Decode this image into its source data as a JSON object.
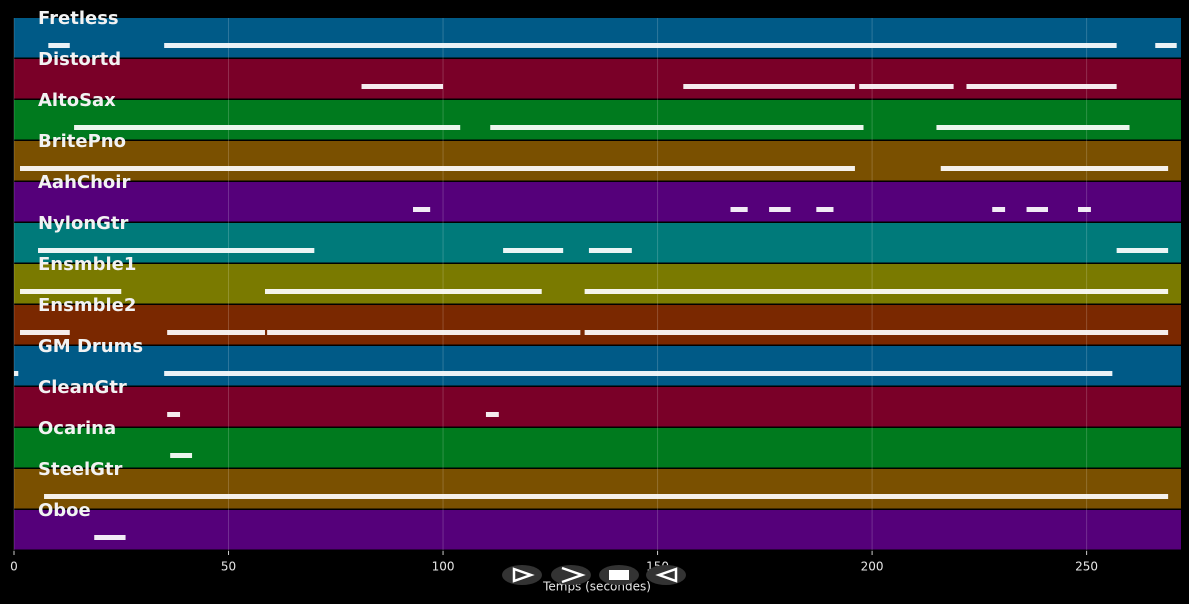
{
  "chart_data": {
    "type": "pianoroll",
    "xlabel": "Temps (secondes)",
    "xlim": [
      0,
      272
    ],
    "xticks": [
      0,
      50,
      100,
      150,
      200,
      250
    ],
    "grid": true,
    "tracks": [
      {
        "name": "Fretless",
        "color": "#005a87",
        "segments": [
          [
            8,
            13
          ],
          [
            35,
            257
          ],
          [
            266,
            271
          ]
        ]
      },
      {
        "name": "Distortd",
        "color": "#7a0028",
        "segments": [
          [
            81,
            100
          ],
          [
            156,
            196
          ],
          [
            197,
            219
          ],
          [
            222,
            257
          ]
        ]
      },
      {
        "name": "AltoSax",
        "color": "#007a1e",
        "segments": [
          [
            14,
            104
          ],
          [
            111,
            198
          ],
          [
            215,
            260
          ]
        ]
      },
      {
        "name": "BritePno",
        "color": "#7a5000",
        "segments": [
          [
            1.4,
            196
          ],
          [
            216,
            269
          ]
        ]
      },
      {
        "name": "AahChoir",
        "color": "#55007a",
        "segments": [
          [
            93,
            97
          ],
          [
            167,
            171
          ],
          [
            176,
            181
          ],
          [
            187,
            191
          ],
          [
            228,
            231
          ],
          [
            236,
            241
          ],
          [
            248,
            251
          ]
        ]
      },
      {
        "name": "NylonGtr",
        "color": "#007a7a",
        "segments": [
          [
            5.6,
            70
          ],
          [
            114,
            128
          ],
          [
            134,
            144
          ],
          [
            257,
            269
          ]
        ]
      },
      {
        "name": "Ensmble1",
        "color": "#7a7a00",
        "segments": [
          [
            1.4,
            25
          ],
          [
            58.5,
            123
          ],
          [
            133,
            269
          ]
        ]
      },
      {
        "name": "Ensmble2",
        "color": "#7a2800",
        "segments": [
          [
            1.4,
            13
          ],
          [
            35.7,
            58.5
          ],
          [
            59,
            132
          ],
          [
            133,
            269
          ]
        ]
      },
      {
        "name": "GM Drums",
        "color": "#005a87",
        "segments": [
          [
            0,
            1
          ],
          [
            35,
            256
          ]
        ]
      },
      {
        "name": "CleanGtr",
        "color": "#7a0028",
        "segments": [
          [
            35.7,
            38.7
          ],
          [
            110,
            113
          ]
        ]
      },
      {
        "name": "Ocarina",
        "color": "#007a1e",
        "segments": [
          [
            36.4,
            41.5
          ]
        ]
      },
      {
        "name": "SteelGtr",
        "color": "#7a5000",
        "segments": [
          [
            7,
            269
          ]
        ]
      },
      {
        "name": "Oboe",
        "color": "#55007a",
        "segments": [
          [
            18.7,
            26
          ]
        ]
      }
    ]
  }
}
